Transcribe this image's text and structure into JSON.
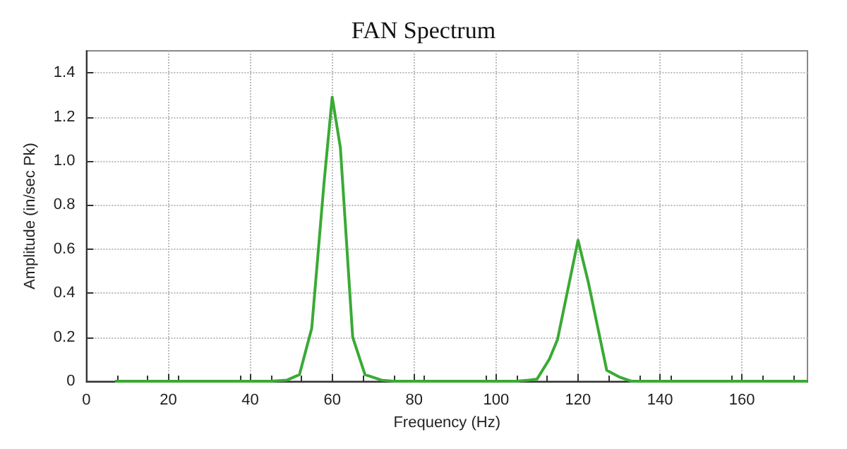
{
  "chart_data": {
    "type": "line",
    "title": "FAN Spectrum",
    "xlabel": "Frequency (Hz)",
    "ylabel": "Amplitude (in/sec Pk)",
    "series": [
      {
        "color": "#3aaa35",
        "x": [
          7,
          45,
          49,
          52,
          55,
          58,
          60,
          62,
          65,
          68,
          72,
          75,
          105,
          108,
          110,
          113,
          115,
          120,
          122.5,
          127,
          130,
          133,
          176
        ],
        "values": [
          0,
          0,
          0.005,
          0.03,
          0.24,
          0.9,
          1.29,
          1.06,
          0.2,
          0.03,
          0.005,
          0,
          0,
          0.005,
          0.01,
          0.1,
          0.19,
          0.64,
          0.45,
          0.05,
          0.02,
          0,
          0
        ]
      }
    ],
    "xlim": [
      0,
      176
    ],
    "xticks": [
      0,
      20,
      40,
      60,
      80,
      100,
      120,
      140,
      160
    ],
    "ylim": [
      0,
      1.5
    ],
    "yticks": [
      0,
      0.2,
      0.4,
      0.6,
      0.8,
      {
        "value": 1,
        "label": "1.0"
      },
      1.2,
      1.4
    ],
    "grid": true,
    "marker": "none",
    "line_style": "solid"
  }
}
